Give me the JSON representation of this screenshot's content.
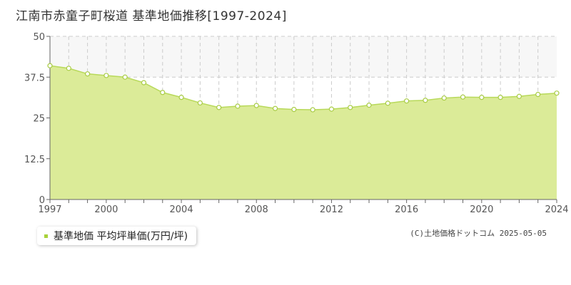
{
  "title": "江南市赤童子町桜道 基準地価推移[1997-2024]",
  "legend": {
    "label": "基準地価 平均坪単価(万円/坪)"
  },
  "copyright": "(C)土地価格ドットコム 2025-05-05",
  "colors": {
    "fill": "#dbeb98",
    "line": "#b8d95a",
    "point_stroke": "#a9cc45",
    "legend_swatch": "#a8d23a",
    "grid": "#cccccc",
    "band": "#f7f7f7"
  },
  "chart_data": {
    "type": "area",
    "title": "",
    "xlabel": "",
    "ylabel": "",
    "xlim": [
      1997,
      2024
    ],
    "ylim": [
      0,
      50
    ],
    "yticks": [
      0,
      12.5,
      25,
      37.5,
      50
    ],
    "ytick_labels": [
      "0",
      "12.5",
      "25",
      "37.5",
      "50"
    ],
    "xticks": [
      1997,
      2000,
      2004,
      2008,
      2012,
      2016,
      2020,
      2024
    ],
    "xtick_labels": [
      "1997",
      "2000",
      "2004",
      "2008",
      "2012",
      "2016",
      "2020",
      "2024"
    ],
    "grid": true,
    "legend_position": "bottom-left",
    "series": [
      {
        "name": "基準地価 平均坪単価(万円/坪)",
        "x": [
          1997,
          1998,
          1999,
          2000,
          2001,
          2002,
          2003,
          2004,
          2005,
          2006,
          2007,
          2008,
          2009,
          2010,
          2011,
          2012,
          2013,
          2014,
          2015,
          2016,
          2017,
          2018,
          2019,
          2020,
          2021,
          2022,
          2023,
          2024
        ],
        "values": [
          41.0,
          40.2,
          38.5,
          38.0,
          37.5,
          35.8,
          32.8,
          31.3,
          29.6,
          28.2,
          28.6,
          28.8,
          27.9,
          27.6,
          27.5,
          27.7,
          28.2,
          28.9,
          29.5,
          30.2,
          30.4,
          31.1,
          31.4,
          31.3,
          31.3,
          31.6,
          32.2,
          32.6
        ]
      }
    ]
  }
}
